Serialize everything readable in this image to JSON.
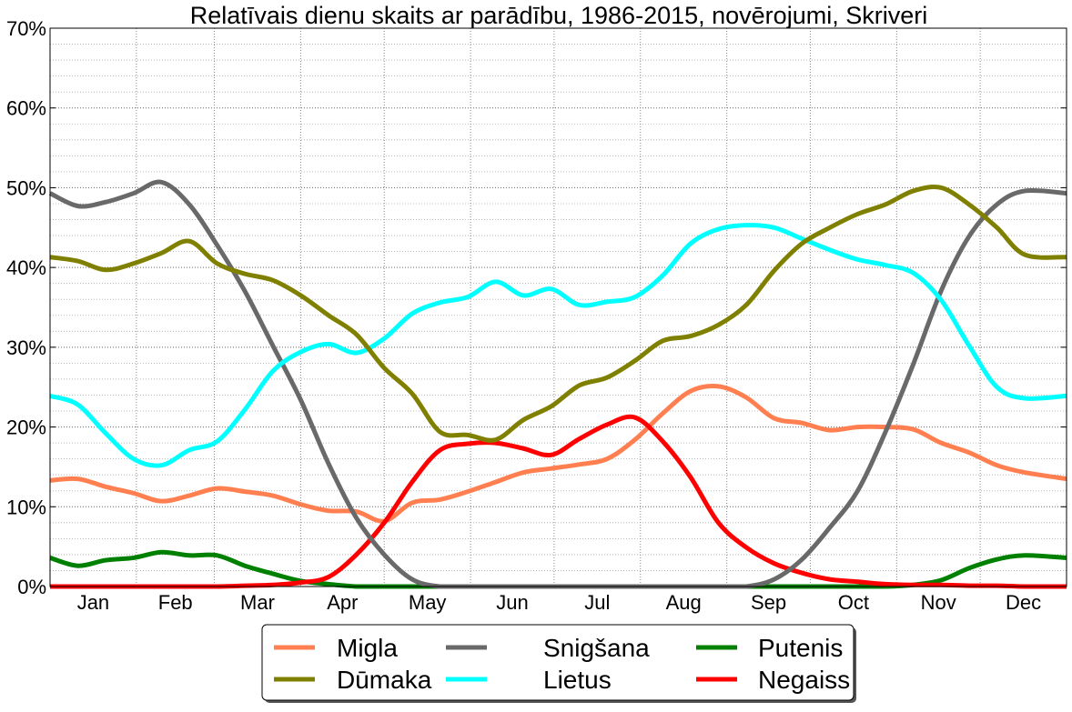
{
  "chart_data": {
    "type": "line",
    "title": "Relatīvais dienu skaits ar parādību, 1986-2015, novērojumi, Skriveri",
    "xlabel": "",
    "ylabel": "",
    "ylim": [
      0,
      70
    ],
    "xlim": [
      0,
      365
    ],
    "yticks": [
      "0%",
      "10%",
      "20%",
      "30%",
      "40%",
      "50%",
      "60%",
      "70%"
    ],
    "xticks": [
      "Jan",
      "Feb",
      "Mar",
      "Apr",
      "May",
      "Jun",
      "Jul",
      "Aug",
      "Sep",
      "Oct",
      "Nov",
      "Dec"
    ],
    "grid": true,
    "legend_position": "bottom-center",
    "x": [
      0,
      10,
      20,
      30,
      40,
      50,
      60,
      70,
      80,
      90,
      100,
      110,
      120,
      130,
      140,
      150,
      160,
      170,
      180,
      190,
      200,
      210,
      220,
      230,
      240,
      250,
      260,
      270,
      280,
      290,
      300,
      310,
      320,
      330,
      340,
      350,
      365
    ],
    "series": [
      {
        "name": "Migla",
        "color": "#ff7f50",
        "values": [
          13.3,
          13.5,
          12.5,
          11.7,
          10.7,
          11.4,
          12.3,
          11.9,
          11.4,
          10.3,
          9.5,
          9.4,
          8.2,
          10.5,
          10.9,
          11.9,
          13.1,
          14.3,
          14.8,
          15.3,
          16.0,
          18.4,
          21.7,
          24.5,
          25.1,
          23.7,
          21.1,
          20.5,
          19.6,
          20.0,
          20.0,
          19.7,
          18.0,
          16.8,
          15.2,
          14.3,
          13.5
        ]
      },
      {
        "name": "Dūmaka",
        "color": "#808000",
        "values": [
          41.3,
          40.8,
          39.7,
          40.5,
          41.8,
          43.3,
          40.5,
          39.2,
          38.4,
          36.5,
          34.0,
          31.6,
          27.4,
          24.2,
          19.4,
          19.0,
          18.4,
          20.9,
          22.6,
          25.2,
          26.2,
          28.3,
          30.8,
          31.4,
          32.8,
          35.3,
          39.6,
          43.0,
          45.0,
          46.7,
          47.9,
          49.6,
          50.0,
          47.9,
          45.0,
          41.6,
          41.3
        ]
      },
      {
        "name": "Snigšana",
        "color": "#696969",
        "values": [
          49.3,
          47.7,
          48.2,
          49.3,
          50.7,
          47.9,
          42.8,
          37.0,
          30.2,
          23.4,
          15.4,
          8.6,
          4.0,
          0.9,
          0,
          0,
          0,
          0,
          0,
          0,
          0,
          0,
          0,
          0,
          0,
          0,
          0.9,
          3.4,
          7.4,
          12.0,
          19.4,
          27.9,
          37.1,
          43.9,
          47.9,
          49.6,
          49.3
        ]
      },
      {
        "name": "Lietus",
        "color": "#00ffff",
        "values": [
          23.9,
          22.8,
          19.2,
          16.0,
          15.2,
          17.1,
          18.2,
          22.2,
          27.0,
          29.4,
          30.4,
          29.3,
          31.1,
          34.2,
          35.6,
          36.3,
          38.2,
          36.5,
          37.3,
          35.3,
          35.7,
          36.3,
          39.0,
          43.0,
          44.8,
          45.3,
          45.0,
          43.6,
          42.2,
          41.0,
          40.3,
          39.3,
          35.9,
          30.2,
          25.0,
          23.6,
          23.9
        ]
      },
      {
        "name": "Putenis",
        "color": "#008000",
        "values": [
          3.6,
          2.6,
          3.3,
          3.6,
          4.3,
          3.9,
          3.9,
          2.6,
          1.6,
          0.7,
          0.3,
          0,
          0,
          0,
          0,
          0,
          0,
          0,
          0,
          0,
          0,
          0,
          0,
          0,
          0,
          0,
          0,
          0,
          0,
          0,
          0,
          0.2,
          0.8,
          2.3,
          3.4,
          3.9,
          3.6
        ]
      },
      {
        "name": "Negaiss",
        "color": "#ff0000",
        "values": [
          0,
          0,
          0,
          0,
          0,
          0,
          0,
          0.1,
          0.2,
          0.5,
          1.2,
          4.0,
          8.0,
          13.1,
          17.1,
          17.9,
          18.0,
          17.3,
          16.5,
          18.5,
          20.3,
          21.2,
          18.2,
          13.7,
          8.0,
          4.9,
          2.9,
          1.7,
          0.9,
          0.6,
          0.3,
          0.2,
          0.2,
          0.1,
          0.1,
          0,
          0
        ]
      }
    ]
  }
}
